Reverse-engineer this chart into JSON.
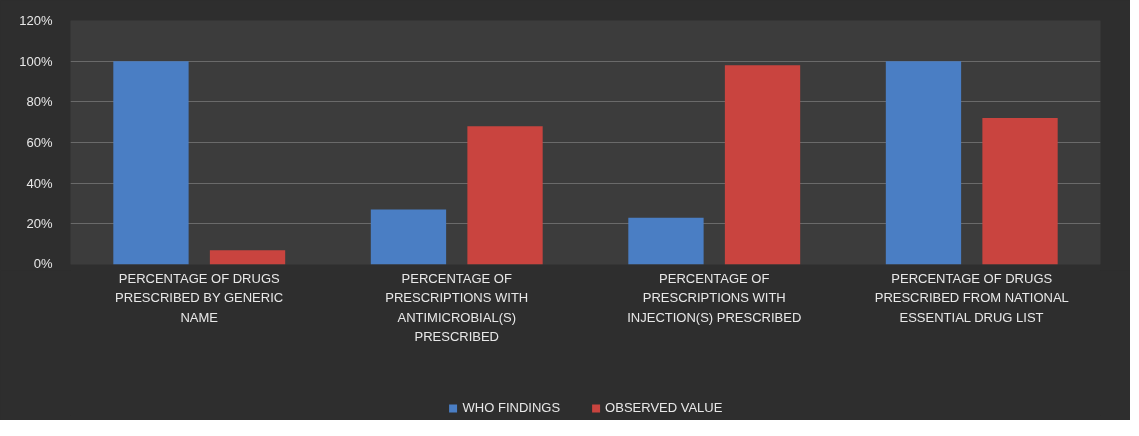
{
  "chart_data": {
    "type": "bar",
    "categories": [
      "PERCENTAGE OF DRUGS PRESCRIBED BY GENERIC NAME",
      "PERCENTAGE OF PRESCRIPTIONS WITH ANTIMICROBIAL(S) PRESCRIBED",
      "PERCENTAGE OF PRESCRIPTIONS WITH INJECTION(S) PRESCRIBED",
      "PERCENTAGE OF DRUGS PRESCRIBED FROM NATIONAL ESSENTIAL DRUG LIST"
    ],
    "series": [
      {
        "name": "WHO FINDINGS",
        "color": "#4a7ec4",
        "values": [
          100,
          27,
          23,
          100
        ]
      },
      {
        "name": "OBSERVED VALUE",
        "color": "#c9443f",
        "values": [
          7,
          68,
          98,
          72
        ]
      }
    ],
    "ylim": [
      0,
      120
    ],
    "yticks": [
      {
        "value": 0,
        "label": "0%"
      },
      {
        "value": 20,
        "label": "20%"
      },
      {
        "value": 40,
        "label": "40%"
      },
      {
        "value": 60,
        "label": "60%"
      },
      {
        "value": 80,
        "label": "80%"
      },
      {
        "value": 100,
        "label": "100%"
      },
      {
        "value": 120,
        "label": "120%"
      }
    ],
    "grid": "y",
    "legend": "bottom"
  }
}
